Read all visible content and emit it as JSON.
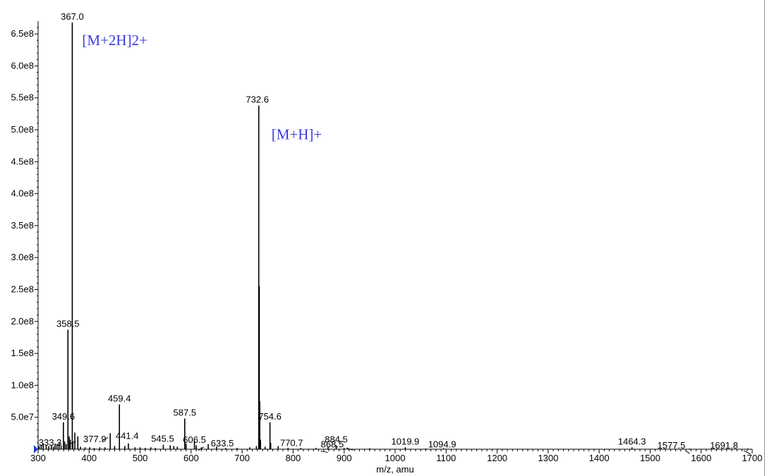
{
  "chart_data": {
    "type": "bar",
    "title": "",
    "xlabel": "m/z, amu",
    "ylabel": "",
    "xlim": [
      300,
      1700
    ],
    "ylim": [
      0,
      670000000.0
    ],
    "x_ticks": [
      300,
      400,
      500,
      600,
      700,
      800,
      900,
      1000,
      1100,
      1200,
      1300,
      1400,
      1500,
      1600,
      1700
    ],
    "y_ticks": [
      {
        "value": 50000000.0,
        "label": "5.0e7"
      },
      {
        "value": 100000000.0,
        "label": "1.0e8"
      },
      {
        "value": 150000000.0,
        "label": "1.5e8"
      },
      {
        "value": 200000000.0,
        "label": "2.0e8"
      },
      {
        "value": 250000000.0,
        "label": "2.5e8"
      },
      {
        "value": 300000000.0,
        "label": "3.0e8"
      },
      {
        "value": 350000000.0,
        "label": "3.5e8"
      },
      {
        "value": 400000000.0,
        "label": "4.0e8"
      },
      {
        "value": 450000000.0,
        "label": "4.5e8"
      },
      {
        "value": 500000000.0,
        "label": "5.0e8"
      },
      {
        "value": 550000000.0,
        "label": "5.5e8"
      },
      {
        "value": 600000000.0,
        "label": "6.0e8"
      },
      {
        "value": 650000000.0,
        "label": "6.5e8"
      }
    ],
    "grid": false,
    "series": [
      {
        "peaks": [
          {
            "mz": 302,
            "intensity": 5000000.0
          },
          {
            "mz": 306,
            "intensity": 7000000.0
          },
          {
            "mz": 310,
            "intensity": 9000000.0
          },
          {
            "mz": 316,
            "intensity": 6000000.0
          },
          {
            "mz": 321,
            "intensity": 5000000.0
          },
          {
            "mz": 326,
            "intensity": 6000000.0
          },
          {
            "mz": 330,
            "intensity": 4000000.0
          },
          {
            "mz": 333.3,
            "intensity": 9000000.0
          },
          {
            "mz": 337,
            "intensity": 8000000.0
          },
          {
            "mz": 341,
            "intensity": 10000000.0
          },
          {
            "mz": 345,
            "intensity": 6000000.0
          },
          {
            "mz": 349.6,
            "intensity": 42000000.0
          },
          {
            "mz": 352,
            "intensity": 12000000.0
          },
          {
            "mz": 355,
            "intensity": 8000000.0
          },
          {
            "mz": 358.5,
            "intensity": 187000000.0
          },
          {
            "mz": 361,
            "intensity": 20000000.0
          },
          {
            "mz": 363,
            "intensity": 15000000.0
          },
          {
            "mz": 367.0,
            "intensity": 668000000.0
          },
          {
            "mz": 368,
            "intensity": 12000000.0
          },
          {
            "mz": 372,
            "intensity": 26000000.0
          },
          {
            "mz": 377.9,
            "intensity": 20000000.0
          },
          {
            "mz": 383,
            "intensity": 4000000.0
          },
          {
            "mz": 392,
            "intensity": 3000000.0
          },
          {
            "mz": 401,
            "intensity": 3000000.0
          },
          {
            "mz": 410,
            "intensity": 2000000.0
          },
          {
            "mz": 421,
            "intensity": 3000000.0
          },
          {
            "mz": 431,
            "intensity": 3000000.0
          },
          {
            "mz": 441.4,
            "intensity": 25000000.0
          },
          {
            "mz": 450,
            "intensity": 5000000.0
          },
          {
            "mz": 459.4,
            "intensity": 70000000.0
          },
          {
            "mz": 470,
            "intensity": 5000000.0
          },
          {
            "mz": 477,
            "intensity": 9000000.0
          },
          {
            "mz": 490,
            "intensity": 3000000.0
          },
          {
            "mz": 500,
            "intensity": 3000000.0
          },
          {
            "mz": 510,
            "intensity": 2000000.0
          },
          {
            "mz": 521,
            "intensity": 3000000.0
          },
          {
            "mz": 530,
            "intensity": 2000000.0
          },
          {
            "mz": 545.5,
            "intensity": 7000000.0
          },
          {
            "mz": 559,
            "intensity": 6000000.0
          },
          {
            "mz": 566,
            "intensity": 5000000.0
          },
          {
            "mz": 573,
            "intensity": 4000000.0
          },
          {
            "mz": 587.5,
            "intensity": 48000000.0
          },
          {
            "mz": 590,
            "intensity": 9000000.0
          },
          {
            "mz": 606.5,
            "intensity": 13000000.0
          },
          {
            "mz": 610,
            "intensity": 6000000.0
          },
          {
            "mz": 620,
            "intensity": 3000000.0
          },
          {
            "mz": 633.5,
            "intensity": 8000000.0
          },
          {
            "mz": 650,
            "intensity": 4000000.0
          },
          {
            "mz": 668,
            "intensity": 2000000.0
          },
          {
            "mz": 690,
            "intensity": 2000000.0
          },
          {
            "mz": 715,
            "intensity": 3000000.0
          },
          {
            "mz": 728,
            "intensity": 5000000.0
          },
          {
            "mz": 732.6,
            "intensity": 538000000.0
          },
          {
            "mz": 733.6,
            "intensity": 255000000.0
          },
          {
            "mz": 734.6,
            "intensity": 75000000.0
          },
          {
            "mz": 736,
            "intensity": 15000000.0
          },
          {
            "mz": 745,
            "intensity": 4000000.0
          },
          {
            "mz": 754.6,
            "intensity": 42000000.0
          },
          {
            "mz": 756,
            "intensity": 10000000.0
          },
          {
            "mz": 770.7,
            "intensity": 5000000.0
          },
          {
            "mz": 790,
            "intensity": 2000000.0
          },
          {
            "mz": 815,
            "intensity": 2000000.0
          },
          {
            "mz": 845,
            "intensity": 2000000.0
          },
          {
            "mz": 868.5,
            "intensity": 3000000.0
          },
          {
            "mz": 884.5,
            "intensity": 6000000.0
          },
          {
            "mz": 900,
            "intensity": 2000000.0
          },
          {
            "mz": 950,
            "intensity": 1500000.0
          },
          {
            "mz": 1019.9,
            "intensity": 3000000.0
          },
          {
            "mz": 1060,
            "intensity": 1000000.0
          },
          {
            "mz": 1094.9,
            "intensity": 1500000.0
          },
          {
            "mz": 1464.3,
            "intensity": 3000000.0
          },
          {
            "mz": 1577.5,
            "intensity": 1000000.0
          },
          {
            "mz": 1691.8,
            "intensity": 1000000.0
          }
        ]
      }
    ],
    "peak_labels": [
      {
        "mz": 367.0,
        "text": "367.0"
      },
      {
        "mz": 732.6,
        "text": "732.6"
      },
      {
        "mz": 358.5,
        "text": "358.5"
      },
      {
        "mz": 459.4,
        "text": "459.4"
      },
      {
        "mz": 349.6,
        "text": "349.6"
      },
      {
        "mz": 587.5,
        "text": "587.5"
      },
      {
        "mz": 754.6,
        "text": "754.6"
      },
      {
        "mz": 377.9,
        "text": "377.9"
      },
      {
        "mz": 441.4,
        "text": "441.4"
      },
      {
        "mz": 333.3,
        "text": "333.3"
      },
      {
        "mz": 545.5,
        "text": "545.5"
      },
      {
        "mz": 606.5,
        "text": "606.5"
      },
      {
        "mz": 633.5,
        "text": "633.5"
      },
      {
        "mz": 770.7,
        "text": "770.7"
      },
      {
        "mz": 868.5,
        "text": "868.5"
      },
      {
        "mz": 884.5,
        "text": "884.5"
      },
      {
        "mz": 1019.9,
        "text": "1019.9"
      },
      {
        "mz": 1094.9,
        "text": "1094.9"
      },
      {
        "mz": 1464.3,
        "text": "1464.3"
      },
      {
        "mz": 1577.5,
        "text": "1577.5"
      },
      {
        "mz": 1691.8,
        "text": "1691.8"
      }
    ],
    "annotations": [
      {
        "text": "[M+2H]2+",
        "near_mz": 367.0
      },
      {
        "text": "[M+H]+",
        "near_mz": 732.6
      }
    ],
    "colors": {
      "peaks": "#000000",
      "axes": "#000000",
      "annotation": "#3a3adf",
      "baseline_marker": "#2040c0"
    }
  }
}
